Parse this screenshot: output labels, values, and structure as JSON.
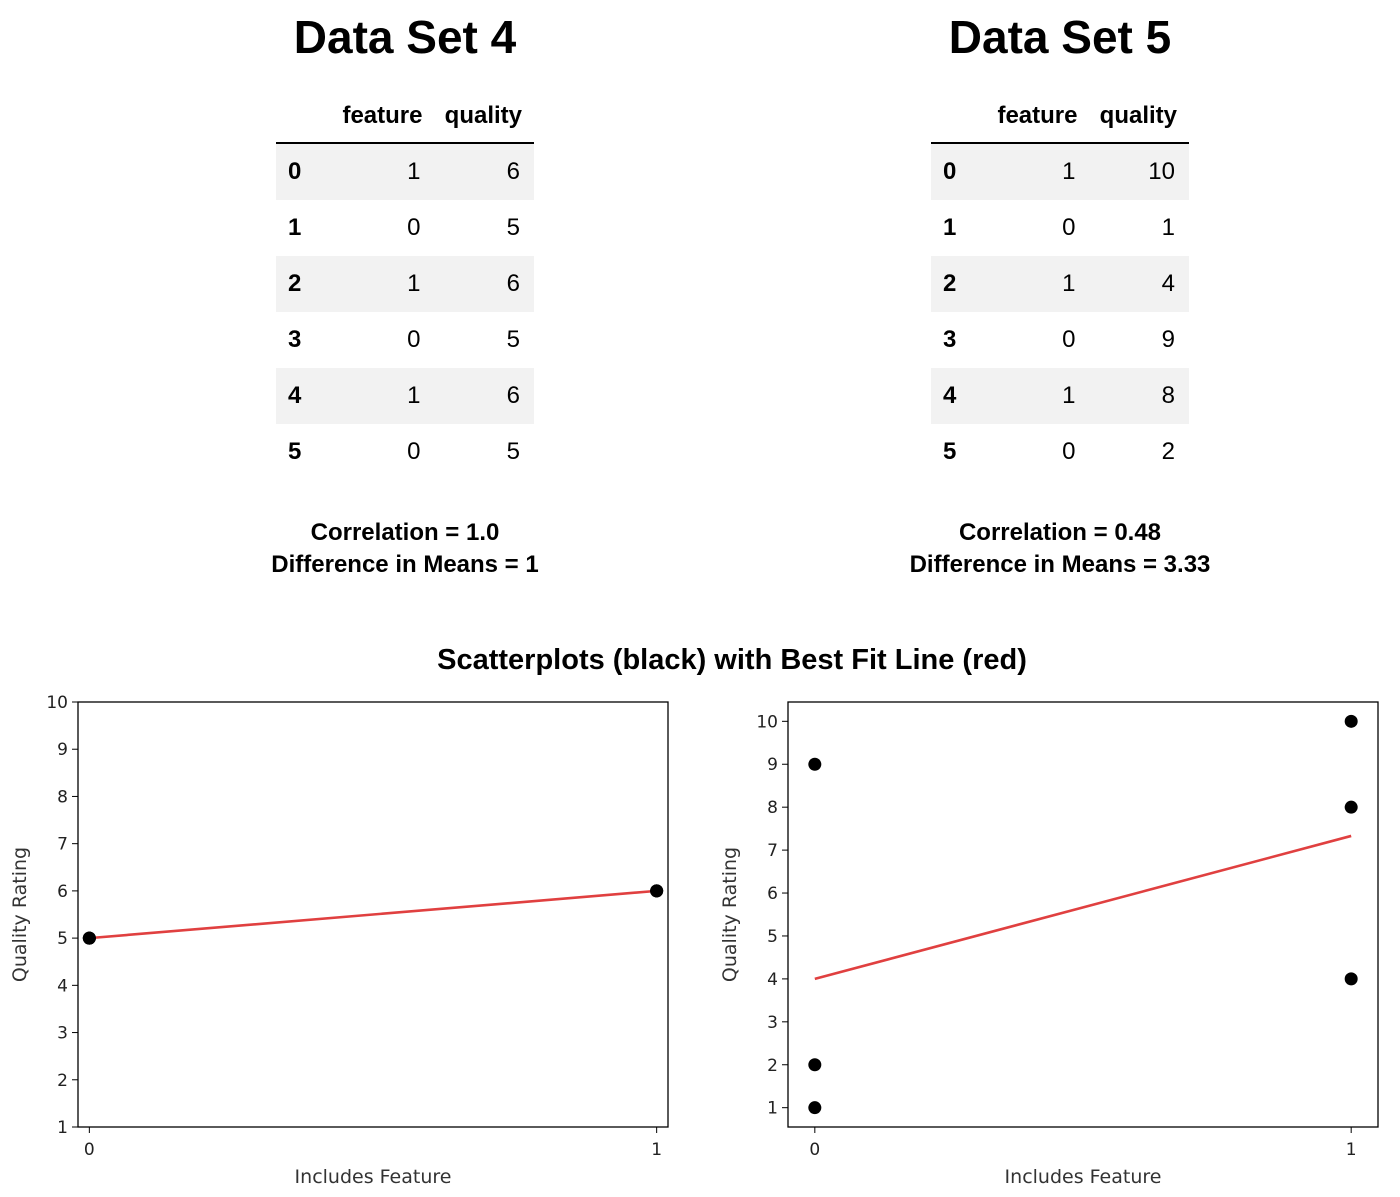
{
  "datasets": [
    {
      "title": "Data Set 4",
      "columns": [
        "feature",
        "quality"
      ],
      "rows": [
        {
          "index": "0",
          "feature": "1",
          "quality": "6"
        },
        {
          "index": "1",
          "feature": "0",
          "quality": "5"
        },
        {
          "index": "2",
          "feature": "1",
          "quality": "6"
        },
        {
          "index": "3",
          "feature": "0",
          "quality": "5"
        },
        {
          "index": "4",
          "feature": "1",
          "quality": "6"
        },
        {
          "index": "5",
          "feature": "0",
          "quality": "5"
        }
      ],
      "correlation": "Correlation = 1.0",
      "mean_diff": "Difference in Means = 1"
    },
    {
      "title": "Data Set 5",
      "columns": [
        "feature",
        "quality"
      ],
      "rows": [
        {
          "index": "0",
          "feature": "1",
          "quality": "10"
        },
        {
          "index": "1",
          "feature": "0",
          "quality": "1"
        },
        {
          "index": "2",
          "feature": "1",
          "quality": "4"
        },
        {
          "index": "3",
          "feature": "0",
          "quality": "9"
        },
        {
          "index": "4",
          "feature": "1",
          "quality": "8"
        },
        {
          "index": "5",
          "feature": "0",
          "quality": "2"
        }
      ],
      "correlation": "Correlation = 0.48",
      "mean_diff": "Difference in Means = 3.33"
    }
  ],
  "plots_title": "Scatterplots (black) with Best Fit Line (red)",
  "colors": {
    "points": "#000000",
    "fit_line": "#e04040"
  },
  "chart_data": [
    {
      "type": "scatter",
      "xlabel": "Includes Feature",
      "ylabel": "Quality Rating",
      "x_ticks": [
        0,
        1
      ],
      "y_ticks": [
        1,
        2,
        3,
        4,
        5,
        6,
        7,
        8,
        9,
        10
      ],
      "xlim": [
        -0.02,
        1.02
      ],
      "ylim": [
        1,
        10
      ],
      "points": [
        [
          1,
          6
        ],
        [
          0,
          5
        ],
        [
          1,
          6
        ],
        [
          0,
          5
        ],
        [
          1,
          6
        ],
        [
          0,
          5
        ]
      ],
      "fit_line": [
        [
          0,
          5
        ],
        [
          1,
          6
        ]
      ],
      "grid": false
    },
    {
      "type": "scatter",
      "xlabel": "Includes Feature",
      "ylabel": "Quality Rating",
      "x_ticks": [
        0,
        1
      ],
      "y_ticks": [
        1,
        2,
        3,
        4,
        5,
        6,
        7,
        8,
        9,
        10
      ],
      "xlim": [
        -0.05,
        1.05
      ],
      "ylim": [
        0.55,
        10.45
      ],
      "points": [
        [
          1,
          10
        ],
        [
          0,
          1
        ],
        [
          1,
          4
        ],
        [
          0,
          9
        ],
        [
          1,
          8
        ],
        [
          0,
          2
        ]
      ],
      "fit_line": [
        [
          0,
          4
        ],
        [
          1,
          7.33
        ]
      ],
      "grid": false
    }
  ]
}
